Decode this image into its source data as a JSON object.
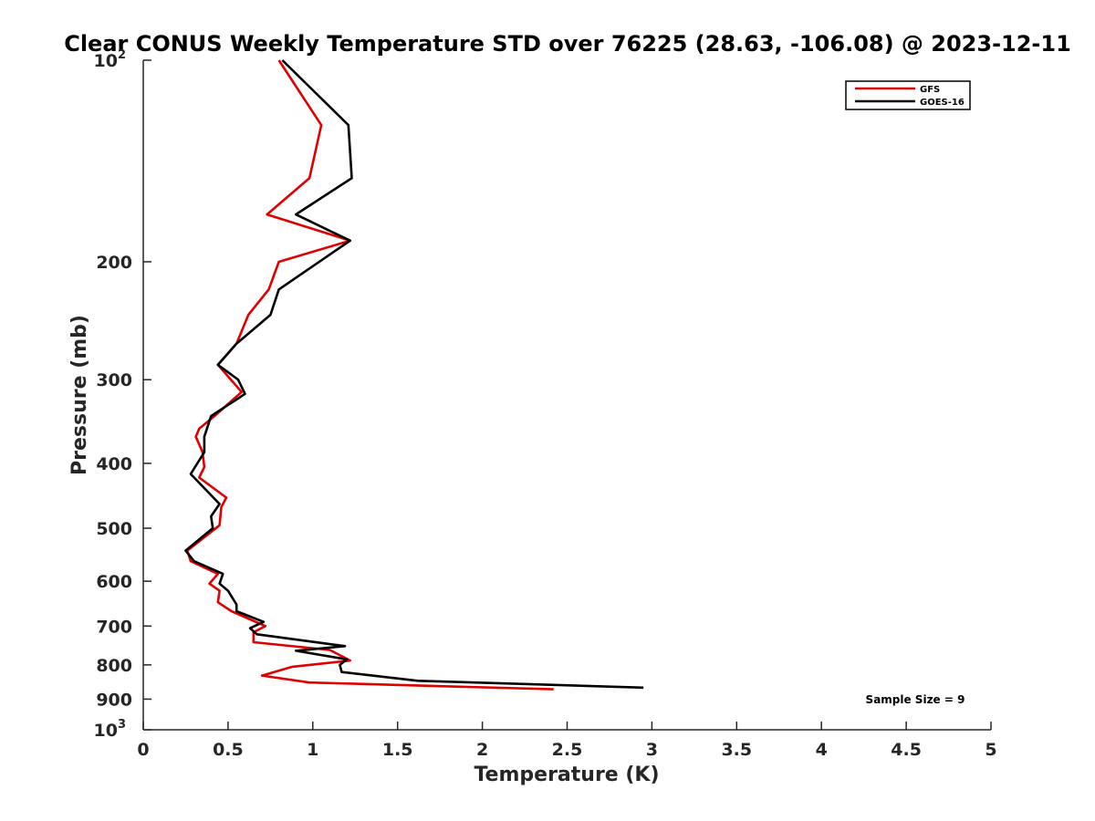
{
  "chart_data": {
    "type": "line",
    "title": "Clear CONUS Weekly Temperature STD over 76225 (28.63, -106.08) @ 2023-12-11",
    "xlabel": "Temperature (K)",
    "ylabel": "Pressure (mb)",
    "xlim": [
      0,
      5
    ],
    "ylim": [
      100,
      1000
    ],
    "y_scale": "log",
    "y_reversed": true,
    "grid": false,
    "legend_position": "top-right",
    "x_ticks": [
      "0",
      "0.5",
      "1",
      "1.5",
      "2",
      "2.5",
      "3",
      "3.5",
      "4",
      "4.5",
      "5"
    ],
    "y_ticks": [
      {
        "value": 100,
        "label": "10",
        "sup": "2"
      },
      {
        "value": 200,
        "label": "200",
        "sup": ""
      },
      {
        "value": 300,
        "label": "300",
        "sup": ""
      },
      {
        "value": 400,
        "label": "400",
        "sup": ""
      },
      {
        "value": 500,
        "label": "500",
        "sup": ""
      },
      {
        "value": 600,
        "label": "600",
        "sup": ""
      },
      {
        "value": 700,
        "label": "700",
        "sup": ""
      },
      {
        "value": 800,
        "label": "800",
        "sup": ""
      },
      {
        "value": 900,
        "label": "900",
        "sup": ""
      },
      {
        "value": 1000,
        "label": "10",
        "sup": "3"
      }
    ],
    "annotation": "Sample Size = 9",
    "series": [
      {
        "name": "GFS",
        "color": "#e00000",
        "points": [
          [
            0.8,
            100
          ],
          [
            1.05,
            125
          ],
          [
            0.98,
            150
          ],
          [
            0.73,
            170
          ],
          [
            1.22,
            186
          ],
          [
            0.8,
            200
          ],
          [
            0.74,
            220
          ],
          [
            0.62,
            240
          ],
          [
            0.55,
            265
          ],
          [
            0.44,
            285
          ],
          [
            0.58,
            313
          ],
          [
            0.42,
            340
          ],
          [
            0.33,
            355
          ],
          [
            0.31,
            365
          ],
          [
            0.35,
            385
          ],
          [
            0.36,
            405
          ],
          [
            0.33,
            420
          ],
          [
            0.49,
            450
          ],
          [
            0.46,
            465
          ],
          [
            0.45,
            495
          ],
          [
            0.26,
            540
          ],
          [
            0.28,
            560
          ],
          [
            0.44,
            585
          ],
          [
            0.39,
            605
          ],
          [
            0.45,
            620
          ],
          [
            0.44,
            645
          ],
          [
            0.52,
            665
          ],
          [
            0.72,
            700
          ],
          [
            0.65,
            715
          ],
          [
            0.65,
            740
          ],
          [
            1.1,
            760
          ],
          [
            1.22,
            788
          ],
          [
            0.88,
            805
          ],
          [
            0.7,
            830
          ],
          [
            0.98,
            850
          ],
          [
            2.42,
            870
          ]
        ]
      },
      {
        "name": "GOES-16",
        "color": "#000000",
        "points": [
          [
            0.82,
            100
          ],
          [
            1.21,
            125
          ],
          [
            1.23,
            150
          ],
          [
            0.9,
            170
          ],
          [
            1.22,
            186
          ],
          [
            0.8,
            220
          ],
          [
            0.75,
            240
          ],
          [
            0.55,
            265
          ],
          [
            0.44,
            285
          ],
          [
            0.56,
            300
          ],
          [
            0.6,
            315
          ],
          [
            0.4,
            340
          ],
          [
            0.36,
            365
          ],
          [
            0.36,
            385
          ],
          [
            0.28,
            415
          ],
          [
            0.45,
            460
          ],
          [
            0.4,
            480
          ],
          [
            0.41,
            500
          ],
          [
            0.25,
            540
          ],
          [
            0.3,
            560
          ],
          [
            0.47,
            585
          ],
          [
            0.45,
            605
          ],
          [
            0.5,
            620
          ],
          [
            0.55,
            650
          ],
          [
            0.55,
            665
          ],
          [
            0.71,
            690
          ],
          [
            0.63,
            705
          ],
          [
            0.67,
            720
          ],
          [
            1.19,
            750
          ],
          [
            0.9,
            762
          ],
          [
            1.2,
            785
          ],
          [
            1.16,
            800
          ],
          [
            1.17,
            820
          ],
          [
            1.62,
            845
          ],
          [
            2.95,
            865
          ]
        ]
      }
    ]
  }
}
